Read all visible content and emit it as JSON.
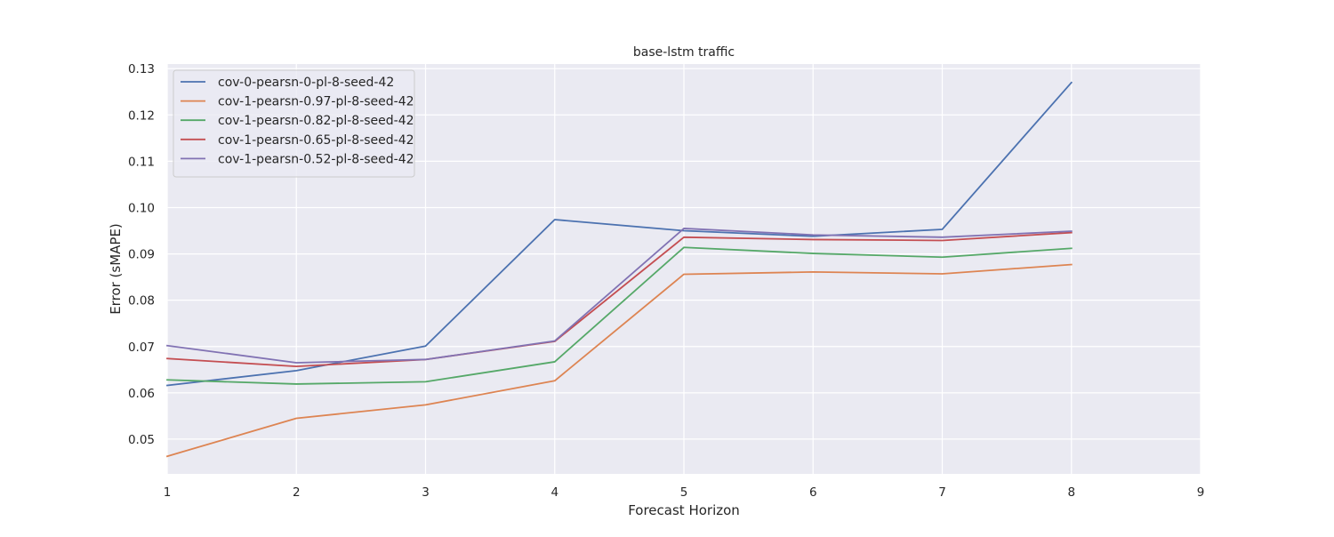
{
  "chart_data": {
    "type": "line",
    "title": "base-lstm traffic",
    "xlabel": "Forecast Horizon",
    "ylabel": "Error (sMAPE)",
    "xlim": [
      1,
      9
    ],
    "ylim": [
      0.0425,
      0.131
    ],
    "x_ticks": [
      "1",
      "2",
      "3",
      "4",
      "5",
      "6",
      "7",
      "8",
      "9"
    ],
    "y_ticks": [
      "0.05",
      "0.06",
      "0.07",
      "0.08",
      "0.09",
      "0.10",
      "0.11",
      "0.12",
      "0.13"
    ],
    "grid": true,
    "legend_position": "top-left",
    "x": [
      1,
      2,
      3,
      4,
      5,
      6,
      7,
      8
    ],
    "series": [
      {
        "name": "cov-0-pearsn-0-pl-8-seed-42",
        "color": "#4c72b0",
        "values": [
          0.0616,
          0.0648,
          0.0701,
          0.0974,
          0.095,
          0.0938,
          0.0953,
          0.127
        ]
      },
      {
        "name": "cov-1-pearsn-0.97-pl-8-seed-42",
        "color": "#dd8452",
        "values": [
          0.0463,
          0.0545,
          0.0574,
          0.0626,
          0.0856,
          0.0861,
          0.0857,
          0.0877
        ]
      },
      {
        "name": "cov-1-pearsn-0.82-pl-8-seed-42",
        "color": "#55a868",
        "values": [
          0.0628,
          0.0619,
          0.0624,
          0.0667,
          0.0914,
          0.0901,
          0.0893,
          0.0912
        ]
      },
      {
        "name": "cov-1-pearsn-0.65-pl-8-seed-42",
        "color": "#c44e52",
        "values": [
          0.0674,
          0.0657,
          0.0672,
          0.0711,
          0.0936,
          0.0931,
          0.0929,
          0.0946
        ]
      },
      {
        "name": "cov-1-pearsn-0.52-pl-8-seed-42",
        "color": "#8172b3",
        "values": [
          0.0702,
          0.0665,
          0.0672,
          0.0712,
          0.0955,
          0.0941,
          0.0936,
          0.0949
        ]
      }
    ]
  }
}
